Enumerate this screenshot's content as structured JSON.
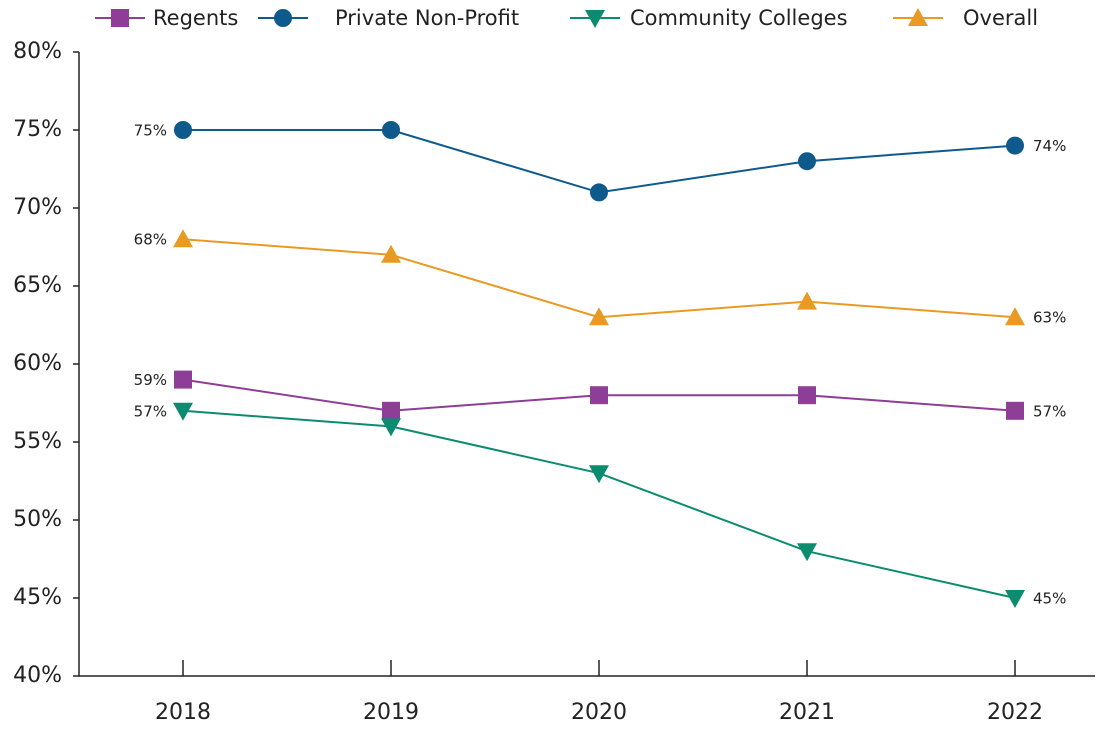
{
  "chart_data": {
    "type": "line",
    "categories": [
      "2018",
      "2019",
      "2020",
      "2021",
      "2022"
    ],
    "series": [
      {
        "name": "Regents",
        "color": "#8e3e96",
        "marker": "square",
        "values": [
          59,
          57,
          58,
          58,
          57
        ],
        "value_labels": [
          "59%",
          null,
          null,
          null,
          "57%"
        ]
      },
      {
        "name": "Private Non-Profit",
        "color": "#0f5a8c",
        "marker": "circle",
        "values": [
          75,
          75,
          71,
          73,
          74
        ],
        "value_labels": [
          "75%",
          null,
          null,
          null,
          "74%"
        ]
      },
      {
        "name": "Community Colleges",
        "color": "#0b8c70",
        "marker": "triangle-down",
        "values": [
          57,
          56,
          53,
          48,
          45
        ],
        "value_labels": [
          "57%",
          null,
          null,
          null,
          "45%"
        ]
      },
      {
        "name": "Overall",
        "color": "#e99a22",
        "marker": "triangle-up",
        "values": [
          68,
          67,
          63,
          64,
          63
        ],
        "value_labels": [
          "68%",
          null,
          null,
          null,
          "63%"
        ]
      }
    ],
    "ylim": [
      40,
      80
    ],
    "yticks": [
      {
        "value": 40,
        "label": "40%"
      },
      {
        "value": 45,
        "label": "45%"
      },
      {
        "value": 50,
        "label": "50%"
      },
      {
        "value": 55,
        "label": "55%"
      },
      {
        "value": 60,
        "label": "60%"
      },
      {
        "value": 65,
        "label": "65%"
      },
      {
        "value": 70,
        "label": "70%"
      },
      {
        "value": 75,
        "label": "75%"
      },
      {
        "value": 80,
        "label": "80%"
      }
    ],
    "legend": "top"
  }
}
